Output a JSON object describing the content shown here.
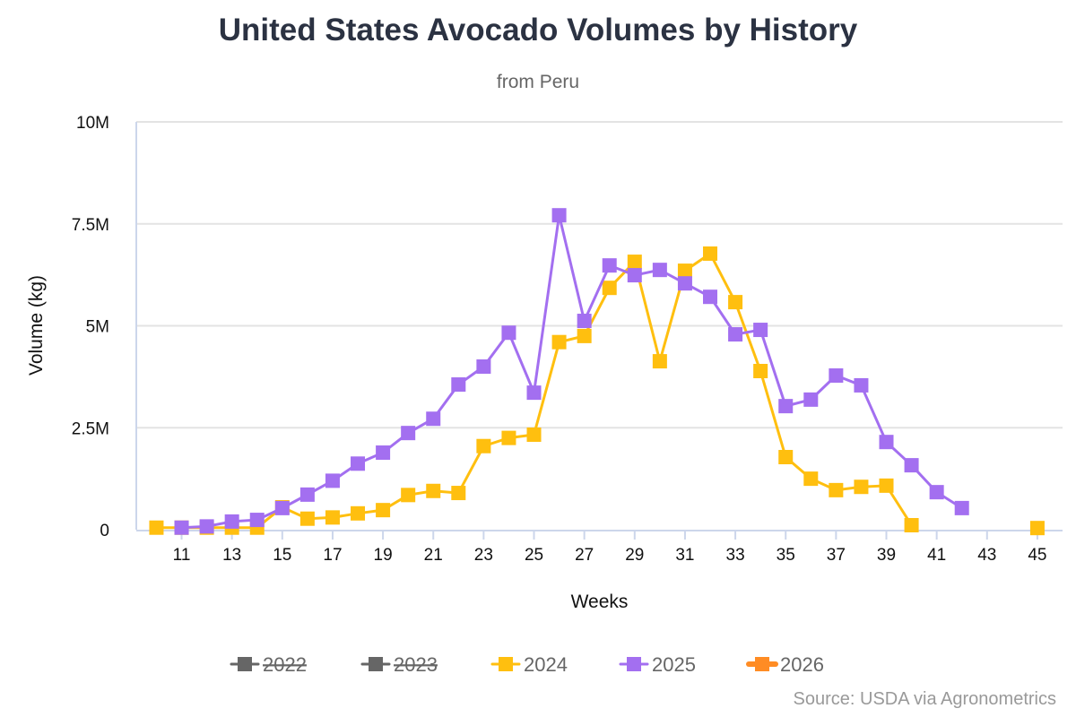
{
  "chart_data": {
    "type": "line",
    "title": "United States Avocado Volumes by History",
    "subtitle": "from Peru",
    "xlabel": "Weeks",
    "ylabel": "Volume (kg)",
    "source": "Source: USDA via Agronometrics",
    "ylim": [
      0,
      10000000
    ],
    "xlim": [
      9.2,
      46
    ],
    "yticks": [
      {
        "v": 0,
        "label": "0"
      },
      {
        "v": 2500000,
        "label": "2.5M"
      },
      {
        "v": 5000000,
        "label": "5M"
      },
      {
        "v": 7500000,
        "label": "7.5M"
      },
      {
        "v": 10000000,
        "label": "10M"
      }
    ],
    "xticks": [
      11,
      13,
      15,
      17,
      19,
      21,
      23,
      25,
      27,
      29,
      31,
      33,
      35,
      37,
      39,
      41,
      43,
      45
    ],
    "grid": true,
    "legend_position": "bottom",
    "series": [
      {
        "name": "2022",
        "color": "#666666",
        "hidden": true,
        "points": []
      },
      {
        "name": "2023",
        "color": "#666666",
        "hidden": true,
        "points": []
      },
      {
        "name": "2024",
        "color": "#ffbf0f",
        "hidden": false,
        "points": [
          [
            10,
            50000
          ],
          [
            11,
            50000
          ],
          [
            12,
            50000
          ],
          [
            13,
            50000
          ],
          [
            14,
            50000
          ],
          [
            15,
            550000
          ],
          [
            16,
            270000
          ],
          [
            17,
            300000
          ],
          [
            18,
            400000
          ],
          [
            19,
            480000
          ],
          [
            20,
            850000
          ],
          [
            21,
            950000
          ],
          [
            22,
            900000
          ],
          [
            23,
            2050000
          ],
          [
            24,
            2250000
          ],
          [
            25,
            2330000
          ],
          [
            26,
            4600000
          ],
          [
            27,
            4750000
          ],
          [
            28,
            5930000
          ],
          [
            29,
            6570000
          ],
          [
            30,
            4130000
          ],
          [
            31,
            6350000
          ],
          [
            32,
            6770000
          ],
          [
            33,
            5580000
          ],
          [
            34,
            3890000
          ],
          [
            35,
            1780000
          ],
          [
            36,
            1250000
          ],
          [
            37,
            970000
          ],
          [
            38,
            1050000
          ],
          [
            39,
            1080000
          ],
          [
            40,
            110000
          ],
          [
            45,
            40000
          ]
        ]
      },
      {
        "name": "2025",
        "color": "#a36ff0",
        "hidden": false,
        "points": [
          [
            11,
            50000
          ],
          [
            12,
            80000
          ],
          [
            13,
            200000
          ],
          [
            14,
            240000
          ],
          [
            15,
            530000
          ],
          [
            16,
            860000
          ],
          [
            17,
            1200000
          ],
          [
            18,
            1620000
          ],
          [
            19,
            1890000
          ],
          [
            20,
            2370000
          ],
          [
            21,
            2720000
          ],
          [
            22,
            3560000
          ],
          [
            23,
            4000000
          ],
          [
            24,
            4830000
          ],
          [
            25,
            3360000
          ],
          [
            26,
            7710000
          ],
          [
            27,
            5120000
          ],
          [
            28,
            6480000
          ],
          [
            29,
            6240000
          ],
          [
            30,
            6370000
          ],
          [
            31,
            6040000
          ],
          [
            32,
            5710000
          ],
          [
            33,
            4790000
          ],
          [
            34,
            4900000
          ],
          [
            35,
            3030000
          ],
          [
            36,
            3190000
          ],
          [
            37,
            3780000
          ],
          [
            38,
            3540000
          ],
          [
            39,
            2150000
          ],
          [
            40,
            1580000
          ],
          [
            41,
            920000
          ],
          [
            42,
            530000
          ]
        ]
      },
      {
        "name": "2026",
        "color": "#ff8c24",
        "hidden": false,
        "points": []
      }
    ]
  }
}
